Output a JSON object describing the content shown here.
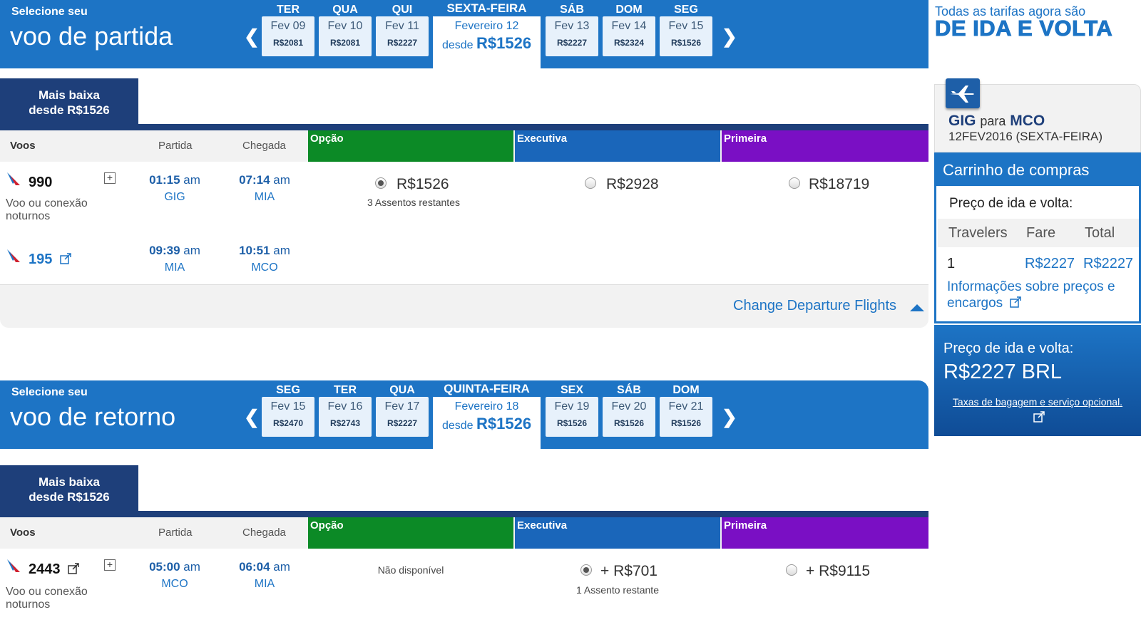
{
  "departure": {
    "select_small": "Selecione seu",
    "select_big": "voo de partida",
    "days": [
      {
        "name": "TER",
        "label": "Fev 09",
        "price": "R$2081"
      },
      {
        "name": "QUA",
        "label": "Fev 10",
        "price": "R$2081"
      },
      {
        "name": "QUI",
        "label": "Fev 11",
        "price": "R$2227"
      },
      {
        "name": "SEXTA-FEIRA",
        "label": "Fevereiro 12",
        "from": "desde",
        "price": "R$1526"
      },
      {
        "name": "SÁB",
        "label": "Fev 13",
        "price": "R$2227"
      },
      {
        "name": "DOM",
        "label": "Fev 14",
        "price": "R$2324"
      },
      {
        "name": "SEG",
        "label": "Fev 15",
        "price": "R$1526"
      }
    ],
    "lowest_line1": "Mais baixa",
    "lowest_line2": "desde R$1526",
    "header": {
      "flights": "Voos",
      "depart": "Partida",
      "arrive": "Chegada",
      "opcao": "Opção",
      "exec": "Executiva",
      "prim": "Primeira"
    },
    "segments": [
      {
        "flight": "990",
        "dep_time": "01:15",
        "dep_ampm": "am",
        "dep_apt": "GIG",
        "arr_time": "07:14",
        "arr_ampm": "am",
        "arr_apt": "MIA",
        "note": "Voo ou conexão noturnos"
      },
      {
        "flight": "195",
        "dep_time": "09:39",
        "dep_ampm": "am",
        "dep_apt": "MIA",
        "arr_time": "10:51",
        "arr_ampm": "am",
        "arr_apt": "MCO"
      }
    ],
    "fares": {
      "opcao": "R$1526",
      "opcao_seats": "3 Assentos restantes",
      "exec": "R$2928",
      "prim": "R$18719"
    },
    "change_link": "Change Departure Flights"
  },
  "return": {
    "select_small": "Selecione seu",
    "select_big": "voo de retorno",
    "days": [
      {
        "name": "SEG",
        "label": "Fev 15",
        "price": "R$2470"
      },
      {
        "name": "TER",
        "label": "Fev 16",
        "price": "R$2743"
      },
      {
        "name": "QUA",
        "label": "Fev 17",
        "price": "R$2227"
      },
      {
        "name": "QUINTA-FEIRA",
        "label": "Fevereiro 18",
        "from": "desde",
        "price": "R$1526"
      },
      {
        "name": "SEX",
        "label": "Fev 19",
        "price": "R$1526"
      },
      {
        "name": "SÁB",
        "label": "Fev 20",
        "price": "R$1526"
      },
      {
        "name": "DOM",
        "label": "Fev 21",
        "price": "R$1526"
      }
    ],
    "lowest_line1": "Mais baixa",
    "lowest_line2": "desde R$1526",
    "header": {
      "flights": "Voos",
      "depart": "Partida",
      "arrive": "Chegada",
      "opcao": "Opção",
      "exec": "Executiva",
      "prim": "Primeira"
    },
    "segment": {
      "flight": "2443",
      "dep_time": "05:00",
      "dep_ampm": "am",
      "dep_apt": "MCO",
      "arr_time": "06:04",
      "arr_ampm": "am",
      "arr_apt": "MIA",
      "note": "Voo ou conexão noturnos"
    },
    "fares": {
      "opcao": "Não disponível",
      "exec": "+ R$701",
      "exec_seats": "1 Assento restante",
      "prim": "+ R$9115"
    }
  },
  "sidebar": {
    "promo_line1": "Todas as tarifas agora são",
    "promo_line2": "DE IDA E VOLTA",
    "route_from": "GIG",
    "route_para": "para",
    "route_to": "MCO",
    "route_date": "12FEV2016 (SEXTA-FEIRA)",
    "cart_title": "Carrinho de compras",
    "cart_sub": "Preço de ida e volta:",
    "cart_headers": [
      "Travelers",
      "Fare",
      "Total"
    ],
    "cart_row": [
      "1",
      "R$2227",
      "R$2227"
    ],
    "cart_link": "Informações sobre preços e encargos",
    "total_label": "Preço de ida e volta:",
    "total_value": "R$2227 BRL",
    "bag_link": "Taxas de bagagem e serviço opcional."
  },
  "colors": {
    "brand_blue": "#1d74c5",
    "navy": "#1e3f7a",
    "opcao_green": "#0c8a26",
    "exec_blue": "#1a66ba",
    "prim_purple": "#7a0fc4"
  },
  "icons": [
    "aa-logo-icon",
    "external-link-icon",
    "expand-plus-icon",
    "radio-icon",
    "chevron-left-icon",
    "chevron-right-icon",
    "plane-icon",
    "caret-up-icon"
  ]
}
